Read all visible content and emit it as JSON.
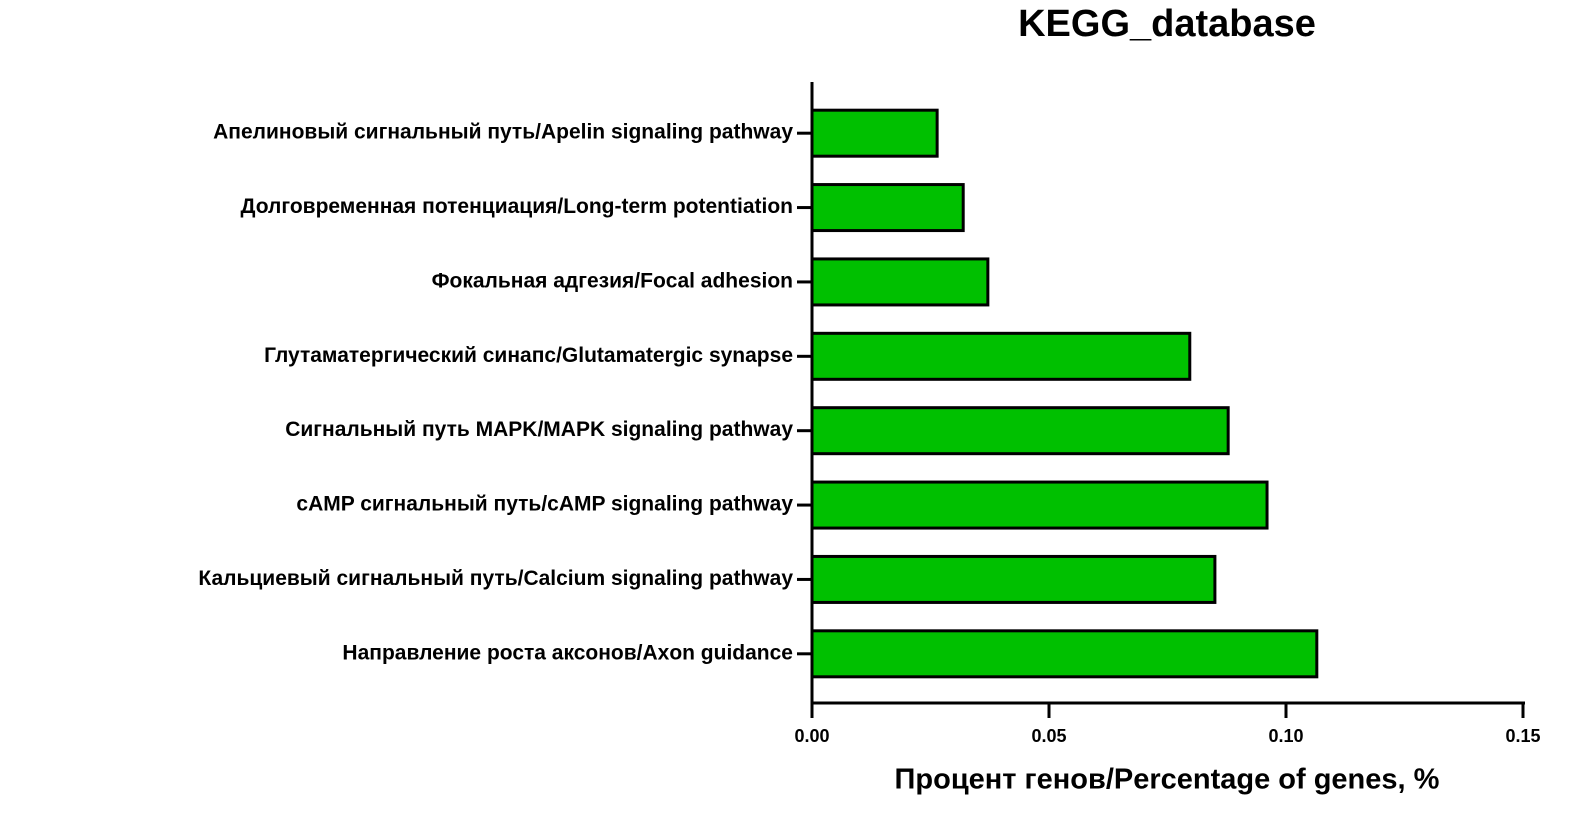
{
  "chart_data": {
    "type": "barh",
    "title": "KEGG_database",
    "xlabel": "Процент генов/Percentage of genes, %",
    "categories": [
      "Апелиновый сигнальный путь/Apelin signaling pathway",
      "Долговременная потенциация/Long-term potentiation",
      "Фокальная адгезия/Focal adhesion",
      "Глутаматергический синапс/Glutamatergic synapse",
      "Сигнальный путь MAPK/MAPK signaling pathway",
      "cAMP сигнальный путь/cAMP signaling pathway",
      "Кальциевый сигнальный путь/Calcium signaling pathway",
      "Направление роста аксонов/Axon guidance"
    ],
    "values": [
      0.0264,
      0.0319,
      0.0371,
      0.0797,
      0.0878,
      0.096,
      0.085,
      0.1065
    ],
    "color": "#00c000",
    "xlim": [
      0,
      0.15
    ],
    "xticks": [
      {
        "value": 0,
        "label": "0.00"
      },
      {
        "value": 0.05,
        "label": "0.05"
      },
      {
        "value": 0.1,
        "label": "0.10"
      },
      {
        "value": 0.15,
        "label": "0.15"
      }
    ]
  }
}
